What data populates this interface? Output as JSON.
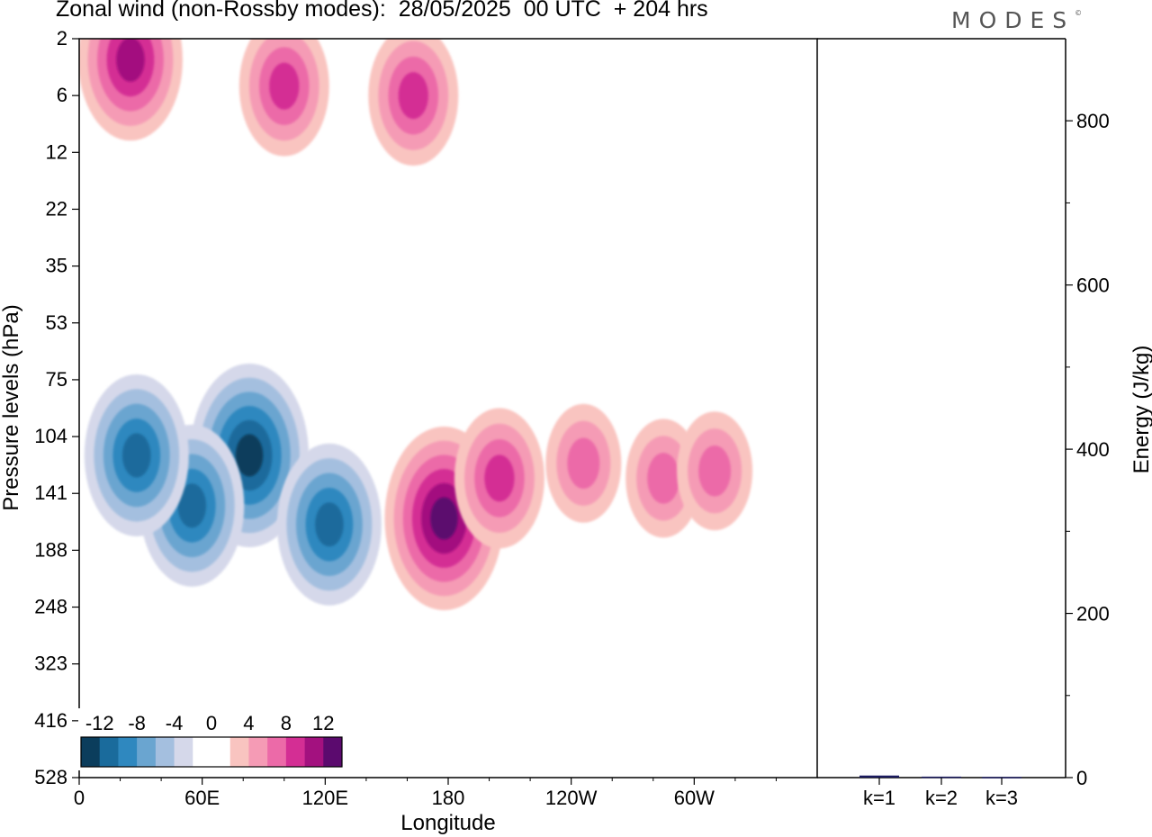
{
  "title": "Zonal wind (non-Rossby modes):  28/05/2025  00 UTC  + 204 hrs",
  "logo": "MODES",
  "logo_mark": "©",
  "colors": {
    "neg": [
      "#0b3d5c",
      "#1a6b9c",
      "#2f88bf",
      "#6aa5d0",
      "#a4bfdf",
      "#d5d8ea"
    ],
    "zero": "#ffffff",
    "pos": [
      "#f9c4c0",
      "#f59bb5",
      "#ec6aa8",
      "#d42e94",
      "#a3117f",
      "#5b0a6e"
    ]
  },
  "chart_data": [
    {
      "type": "heatmap",
      "title": "Zonal wind (non-Rossby modes):  28/05/2025  00 UTC  + 204 hrs",
      "xlabel": "Longitude",
      "ylabel": "Pressure levels (hPa)",
      "x_ticks": [
        "0",
        "60E",
        "120E",
        "180",
        "120W",
        "60W"
      ],
      "y_ticks": [
        "2",
        "6",
        "12",
        "22",
        "35",
        "53",
        "75",
        "104",
        "141",
        "188",
        "248",
        "323",
        "416",
        "528"
      ],
      "colorbar": {
        "levels": [
          -14,
          -12,
          -10,
          -8,
          -6,
          -4,
          -2,
          2,
          4,
          6,
          8,
          10,
          12,
          14
        ],
        "labels": [
          "-12",
          "-8",
          "-4",
          "0",
          "4",
          "8",
          "12"
        ]
      },
      "features": [
        {
          "lon": 83,
          "level": "115",
          "value": -13
        },
        {
          "lon": 55,
          "level": "150",
          "value": -11
        },
        {
          "lon": 28,
          "level": "115",
          "value": -10
        },
        {
          "lon": 122,
          "level": "165",
          "value": -10
        },
        {
          "lon": 178,
          "level": "160",
          "value": 13
        },
        {
          "lon": 205,
          "level": "130",
          "value": 8
        },
        {
          "lon": 246,
          "level": "120",
          "value": 7
        },
        {
          "lon": 285,
          "level": "130",
          "value": 6
        },
        {
          "lon": 310,
          "level": "125",
          "value": 6
        },
        {
          "lon": 100,
          "level": "5",
          "value": 9
        },
        {
          "lon": 25,
          "level": "3",
          "value": 10
        },
        {
          "lon": 163,
          "level": "6",
          "value": 8
        }
      ]
    },
    {
      "type": "bar",
      "ylabel": "Energy (J/kg)",
      "categories": [
        "k=1",
        "k=2",
        "k=3"
      ],
      "values": [
        2.5,
        1.2,
        0.8
      ],
      "ylim": [
        0,
        900
      ],
      "y_ticks": [
        0,
        200,
        400,
        600,
        800
      ],
      "color": "#1a1a5e"
    }
  ]
}
